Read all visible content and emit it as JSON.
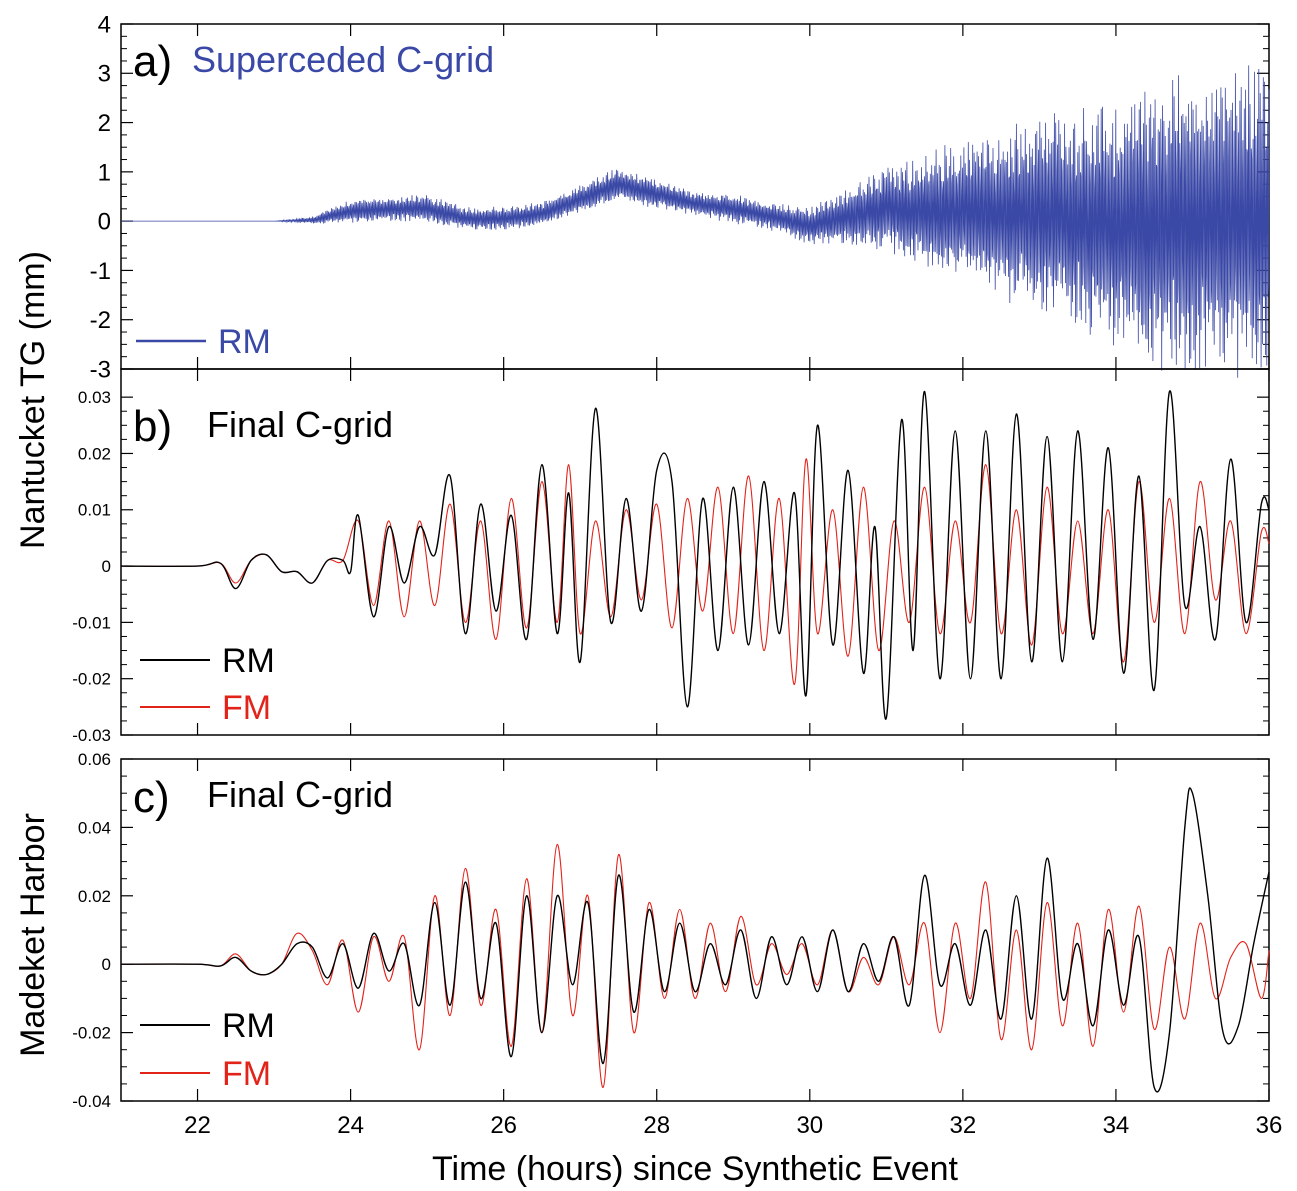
{
  "chart_data": [
    {
      "type": "line",
      "panel_label": "a)",
      "title": "Superceded C-grid",
      "title_color": "#3a48a6",
      "ylim": [
        -3,
        4
      ],
      "yticks": [
        -3,
        -2,
        -1,
        0,
        1,
        2,
        3,
        4
      ],
      "ytick_labels": [
        "-3",
        "-2",
        "-1",
        "0",
        "1",
        "2",
        "3",
        "4"
      ],
      "xlim": [
        21,
        36
      ],
      "series": [
        {
          "name": "RM",
          "color": "#3a48a6",
          "description_points": {
            "t": [
              21,
              23.0,
              23.5,
              24.0,
              24.5,
              25.0,
              25.5,
              26.0,
              26.5,
              27.0,
              27.5,
              28.0,
              28.5,
              29.0,
              29.5,
              30.0,
              30.5,
              31.0,
              31.5,
              32.0,
              32.5,
              33.0,
              33.5,
              34.0,
              34.5,
              35.0,
              35.5,
              36.0
            ],
            "baseline": [
              0,
              0,
              0.02,
              0.2,
              0.25,
              0.25,
              0.05,
              0.05,
              0.15,
              0.45,
              0.75,
              0.55,
              0.35,
              0.25,
              0.1,
              -0.1,
              0.1,
              0.25,
              0.2,
              0.2,
              0.15,
              0.1,
              0.0,
              -0.1,
              -0.1,
              0.0,
              0.0,
              0.0
            ],
            "amplitude": [
              0,
              0,
              0.08,
              0.25,
              0.25,
              0.3,
              0.25,
              0.25,
              0.25,
              0.3,
              0.35,
              0.3,
              0.25,
              0.3,
              0.3,
              0.4,
              0.6,
              0.9,
              1.2,
              1.5,
              1.8,
              2.1,
              2.4,
              2.7,
              3.0,
              3.2,
              3.4,
              3.5
            ]
          }
        }
      ]
    },
    {
      "type": "line",
      "panel_label": "b)",
      "title": "Final C-grid",
      "ylim": [
        -0.03,
        0.035
      ],
      "yticks": [
        -0.03,
        -0.02,
        -0.01,
        0,
        0.01,
        0.02,
        0.03
      ],
      "ytick_labels": [
        "-0.03",
        "-0.02",
        "-0.01",
        "0",
        "0.01",
        "0.02",
        "0.03"
      ],
      "xlim": [
        21,
        36
      ],
      "series": [
        {
          "name": "RM",
          "color": "#000000",
          "x": [
            21,
            22,
            22.3,
            22.5,
            22.7,
            22.9,
            23.1,
            23.3,
            23.5,
            23.7,
            23.9,
            24.0,
            24.1,
            24.3,
            24.5,
            24.7,
            24.9,
            25.1,
            25.3,
            25.5,
            25.7,
            25.9,
            26.1,
            26.3,
            26.5,
            26.7,
            26.85,
            27.0,
            27.2,
            27.4,
            27.6,
            27.8,
            28.0,
            28.2,
            28.4,
            28.6,
            28.8,
            29.0,
            29.2,
            29.4,
            29.6,
            29.8,
            29.95,
            30.1,
            30.3,
            30.5,
            30.7,
            30.85,
            31.0,
            31.2,
            31.35,
            31.5,
            31.7,
            31.9,
            32.1,
            32.3,
            32.5,
            32.7,
            32.9,
            33.1,
            33.3,
            33.5,
            33.7,
            33.9,
            34.1,
            34.3,
            34.5,
            34.7,
            34.9,
            35.1,
            35.3,
            35.5,
            35.7,
            35.9,
            36.0
          ],
          "y": [
            0,
            0,
            0.0005,
            -0.004,
            0.001,
            0.002,
            -0.001,
            -0.001,
            -0.003,
            0.001,
            0.001,
            -0.001,
            0.009,
            -0.009,
            0.007,
            -0.003,
            0.007,
            0.002,
            0.016,
            -0.012,
            0.011,
            -0.008,
            0.009,
            -0.013,
            0.018,
            -0.012,
            0.013,
            -0.017,
            0.028,
            -0.01,
            0.012,
            -0.008,
            0.017,
            0.015,
            -0.025,
            0.012,
            -0.015,
            0.014,
            -0.014,
            0.015,
            -0.012,
            0.013,
            -0.023,
            0.025,
            -0.014,
            0.017,
            -0.019,
            0.007,
            -0.027,
            0.026,
            -0.015,
            0.031,
            -0.02,
            0.024,
            -0.02,
            0.024,
            -0.02,
            0.027,
            -0.017,
            0.023,
            -0.017,
            0.024,
            -0.013,
            0.021,
            -0.019,
            0.016,
            -0.022,
            0.031,
            -0.007,
            0.007,
            -0.013,
            0.019,
            -0.01,
            0.011,
            0.01
          ]
        },
        {
          "name": "FM",
          "color": "#e2231a",
          "x": [
            21,
            22,
            22.3,
            22.5,
            22.7,
            22.9,
            23.1,
            23.3,
            23.5,
            23.7,
            23.9,
            24.1,
            24.3,
            24.5,
            24.7,
            24.9,
            25.1,
            25.3,
            25.5,
            25.7,
            25.9,
            26.1,
            26.3,
            26.5,
            26.7,
            26.85,
            27.0,
            27.2,
            27.4,
            27.6,
            27.8,
            28.0,
            28.2,
            28.4,
            28.6,
            28.8,
            29.0,
            29.2,
            29.4,
            29.6,
            29.8,
            29.95,
            30.1,
            30.3,
            30.5,
            30.7,
            30.9,
            31.1,
            31.3,
            31.5,
            31.7,
            31.9,
            32.1,
            32.3,
            32.5,
            32.7,
            32.9,
            33.1,
            33.3,
            33.5,
            33.7,
            33.9,
            34.1,
            34.3,
            34.5,
            34.7,
            34.9,
            35.1,
            35.3,
            35.5,
            35.7,
            35.9,
            36.0
          ],
          "y": [
            0,
            0,
            0.0005,
            -0.003,
            0.001,
            0.002,
            -0.001,
            -0.001,
            -0.003,
            0.001,
            0.001,
            0.008,
            -0.007,
            0.008,
            -0.009,
            0.008,
            -0.007,
            0.011,
            -0.01,
            0.008,
            -0.013,
            0.012,
            -0.011,
            0.015,
            -0.01,
            0.018,
            -0.012,
            0.008,
            -0.009,
            0.01,
            -0.006,
            0.011,
            -0.011,
            0.012,
            -0.008,
            0.014,
            -0.012,
            0.016,
            -0.015,
            0.012,
            -0.021,
            0.019,
            -0.012,
            0.01,
            -0.016,
            0.014,
            -0.015,
            0.008,
            -0.01,
            0.014,
            -0.012,
            0.008,
            -0.01,
            0.018,
            -0.012,
            0.01,
            -0.014,
            0.014,
            -0.012,
            0.008,
            -0.012,
            0.01,
            -0.017,
            0.015,
            -0.01,
            0.012,
            -0.012,
            0.015,
            -0.006,
            0.008,
            -0.012,
            0.006,
            0.004
          ]
        }
      ]
    },
    {
      "type": "line",
      "panel_label": "c)",
      "title": "Final C-grid",
      "ylim": [
        -0.04,
        0.06
      ],
      "yticks": [
        -0.04,
        -0.02,
        0,
        0.02,
        0.04,
        0.06
      ],
      "ytick_labels": [
        "-0.04",
        "-0.02",
        "0",
        "0.02",
        "0.04",
        "0.06"
      ],
      "xlim": [
        21,
        36
      ],
      "xticks": [
        22,
        24,
        26,
        28,
        30,
        32,
        34,
        36
      ],
      "xtick_labels": [
        "22",
        "24",
        "26",
        "28",
        "30",
        "32",
        "34",
        "36"
      ],
      "xlabel": "Time (hours) since Synthetic Event",
      "series": [
        {
          "name": "RM",
          "color": "#000000",
          "x": [
            21,
            22,
            22.3,
            22.5,
            22.7,
            22.9,
            23.1,
            23.3,
            23.5,
            23.7,
            23.9,
            24.1,
            24.3,
            24.5,
            24.7,
            24.9,
            25.1,
            25.3,
            25.5,
            25.7,
            25.9,
            26.1,
            26.3,
            26.5,
            26.7,
            26.9,
            27.1,
            27.3,
            27.5,
            27.7,
            27.9,
            28.1,
            28.3,
            28.5,
            28.7,
            28.9,
            29.1,
            29.3,
            29.5,
            29.7,
            29.9,
            30.1,
            30.3,
            30.5,
            30.7,
            30.9,
            31.1,
            31.3,
            31.5,
            31.7,
            31.9,
            32.1,
            32.3,
            32.5,
            32.7,
            32.9,
            33.1,
            33.3,
            33.5,
            33.7,
            33.9,
            34.1,
            34.3,
            34.5,
            34.7,
            34.9,
            35.0,
            35.2,
            35.4,
            35.6,
            35.8,
            36.0
          ],
          "y": [
            0,
            0,
            -0.0005,
            0.002,
            -0.002,
            -0.003,
            0.0,
            0.006,
            0.005,
            -0.004,
            0.006,
            -0.007,
            0.009,
            -0.002,
            0.006,
            -0.012,
            0.018,
            -0.012,
            0.024,
            -0.01,
            0.012,
            -0.027,
            0.02,
            -0.02,
            0.02,
            -0.006,
            0.018,
            -0.029,
            0.026,
            -0.014,
            0.016,
            -0.008,
            0.012,
            -0.008,
            0.006,
            -0.006,
            0.01,
            -0.01,
            0.008,
            -0.006,
            0.008,
            -0.008,
            0.01,
            -0.008,
            0.006,
            -0.005,
            0.008,
            -0.012,
            0.026,
            -0.006,
            0.006,
            -0.012,
            0.01,
            -0.016,
            0.02,
            -0.016,
            0.031,
            -0.01,
            0.006,
            -0.018,
            0.01,
            -0.012,
            0.008,
            -0.036,
            -0.02,
            0.04,
            0.05,
            0.02,
            -0.02,
            -0.018,
            0.006,
            0.027
          ]
        },
        {
          "name": "FM",
          "color": "#e2231a",
          "x": [
            21,
            22,
            22.3,
            22.5,
            22.7,
            22.9,
            23.1,
            23.3,
            23.5,
            23.7,
            23.9,
            24.1,
            24.3,
            24.5,
            24.7,
            24.9,
            25.1,
            25.3,
            25.5,
            25.7,
            25.9,
            26.1,
            26.3,
            26.5,
            26.7,
            26.9,
            27.1,
            27.3,
            27.5,
            27.7,
            27.9,
            28.1,
            28.3,
            28.5,
            28.7,
            28.9,
            29.1,
            29.3,
            29.5,
            29.7,
            29.9,
            30.1,
            30.3,
            30.5,
            30.7,
            30.9,
            31.1,
            31.3,
            31.5,
            31.7,
            31.9,
            32.1,
            32.3,
            32.5,
            32.7,
            32.9,
            33.1,
            33.3,
            33.5,
            33.7,
            33.9,
            34.1,
            34.3,
            34.5,
            34.7,
            34.9,
            35.1,
            35.3,
            35.5,
            35.7,
            35.9,
            36.0
          ],
          "y": [
            0,
            0,
            -0.0005,
            0.003,
            -0.002,
            -0.003,
            0.0,
            0.009,
            0.004,
            -0.006,
            0.007,
            -0.014,
            0.008,
            -0.005,
            0.008,
            -0.025,
            0.02,
            -0.015,
            0.028,
            -0.012,
            0.016,
            -0.024,
            0.025,
            -0.02,
            0.035,
            -0.015,
            0.02,
            -0.036,
            0.032,
            -0.02,
            0.018,
            -0.01,
            0.016,
            -0.01,
            0.012,
            -0.008,
            0.014,
            -0.006,
            0.006,
            -0.003,
            0.006,
            -0.006,
            0.01,
            -0.008,
            0.002,
            -0.006,
            0.008,
            -0.006,
            0.012,
            -0.02,
            0.012,
            -0.01,
            0.024,
            -0.022,
            0.01,
            -0.025,
            0.018,
            -0.018,
            0.012,
            -0.024,
            0.016,
            -0.014,
            0.017,
            -0.019,
            0.005,
            -0.016,
            0.012,
            -0.01,
            0.002,
            0.006,
            -0.01,
            0.004
          ]
        }
      ]
    }
  ],
  "figure": {
    "ylabel_top": "Nantucket TG (mm)",
    "ylabel_bottom": "Madeket Harbor",
    "xlabel": "Time (hours) since Synthetic Event"
  },
  "legend": {
    "a_rm": "RM",
    "b_rm": "RM",
    "b_fm": "FM",
    "c_rm": "RM",
    "c_fm": "FM"
  }
}
